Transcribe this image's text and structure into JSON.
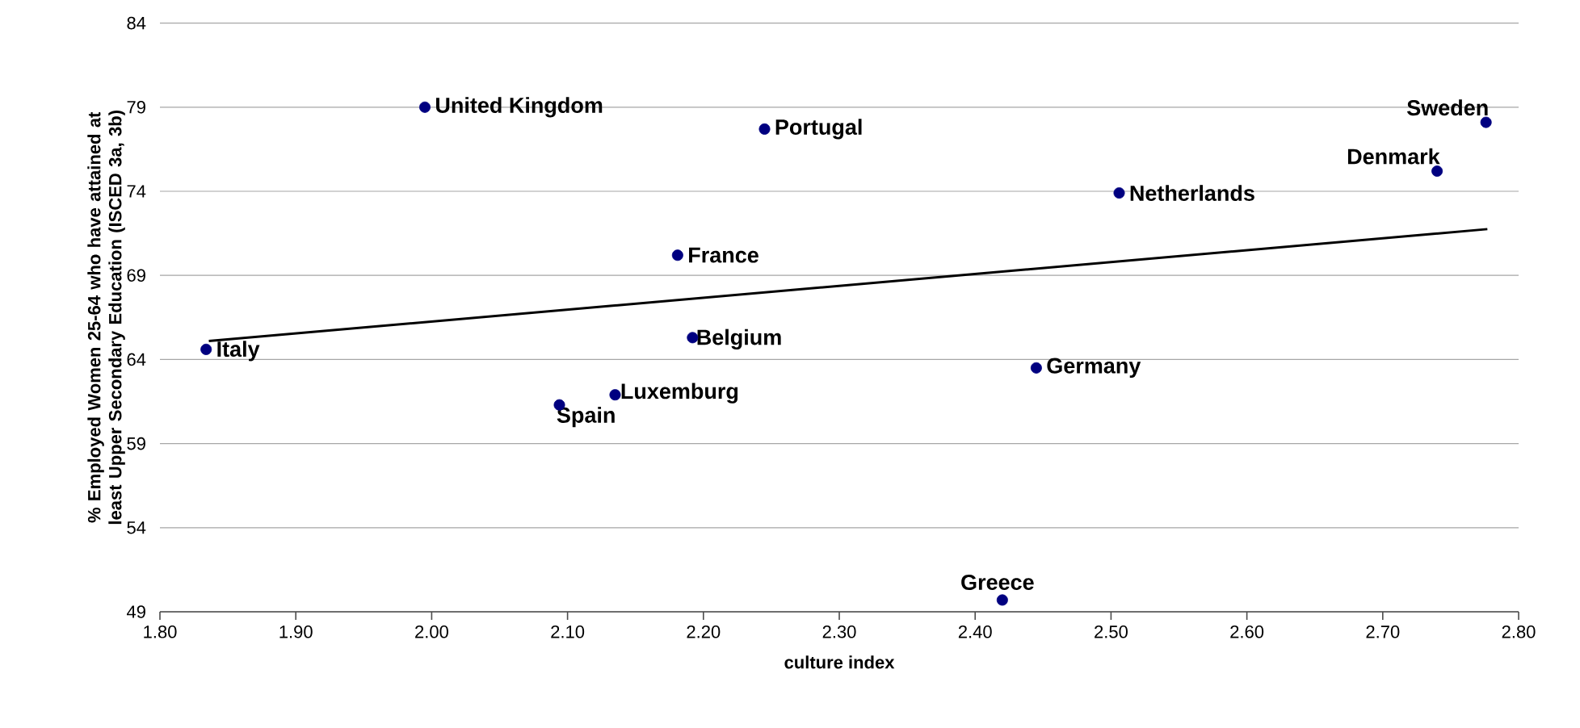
{
  "chart_data": {
    "type": "scatter",
    "xlabel": "culture index",
    "ylabel": "% Employed Women 25-64 who have attained at least Upper Secondary Education (ISCED 3a, 3b)",
    "xlim": [
      1.8,
      2.8
    ],
    "ylim": [
      49,
      84
    ],
    "xticks": [
      {
        "value": 1.8,
        "label": "1.80"
      },
      {
        "value": 1.9,
        "label": "1.90"
      },
      {
        "value": 2.0,
        "label": "2.00"
      },
      {
        "value": 2.1,
        "label": "2.10"
      },
      {
        "value": 2.2,
        "label": "2.20"
      },
      {
        "value": 2.3,
        "label": "2.30"
      },
      {
        "value": 2.4,
        "label": "2.40"
      },
      {
        "value": 2.5,
        "label": "2.50"
      },
      {
        "value": 2.6,
        "label": "2.60"
      },
      {
        "value": 2.7,
        "label": "2.70"
      },
      {
        "value": 2.8,
        "label": "2.80"
      }
    ],
    "yticks": [
      49,
      54,
      59,
      64,
      69,
      74,
      79,
      84
    ],
    "grid": "y",
    "legend": false,
    "marker": "circle",
    "series": [
      {
        "color": "#000080",
        "x": [
          1.834,
          1.995,
          2.245,
          2.181,
          2.192,
          2.094,
          2.135,
          2.42,
          2.445,
          2.506,
          2.74,
          2.776
        ],
        "values": [
          64.6,
          79.0,
          77.7,
          70.2,
          65.3,
          61.3,
          61.9,
          49.7,
          63.5,
          73.9,
          75.2,
          78.1
        ]
      },
      {
        "type": "line",
        "color": "#000000",
        "marker": "none",
        "x": [
          1.836,
          2.777
        ],
        "values": [
          65.1,
          71.75
        ]
      }
    ],
    "annotations": [
      {
        "text": "Italy",
        "x": 1.834,
        "y": 64.6
      },
      {
        "text": "United Kingdom",
        "x": 1.995,
        "y": 79.0
      },
      {
        "text": "Portugal",
        "x": 2.245,
        "y": 77.7
      },
      {
        "text": "France",
        "x": 2.181,
        "y": 70.2
      },
      {
        "text": "Belgium",
        "x": 2.192,
        "y": 65.3
      },
      {
        "text": "Spain",
        "x": 2.094,
        "y": 61.3
      },
      {
        "text": "Luxemburg",
        "x": 2.135,
        "y": 61.9
      },
      {
        "text": "Greece",
        "x": 2.42,
        "y": 49.7
      },
      {
        "text": "Germany",
        "x": 2.445,
        "y": 63.5
      },
      {
        "text": "Netherlands",
        "x": 2.506,
        "y": 73.9
      },
      {
        "text": "Denmark",
        "x": 2.74,
        "y": 75.2
      },
      {
        "text": "Sweden",
        "x": 2.776,
        "y": 78.1
      }
    ]
  }
}
